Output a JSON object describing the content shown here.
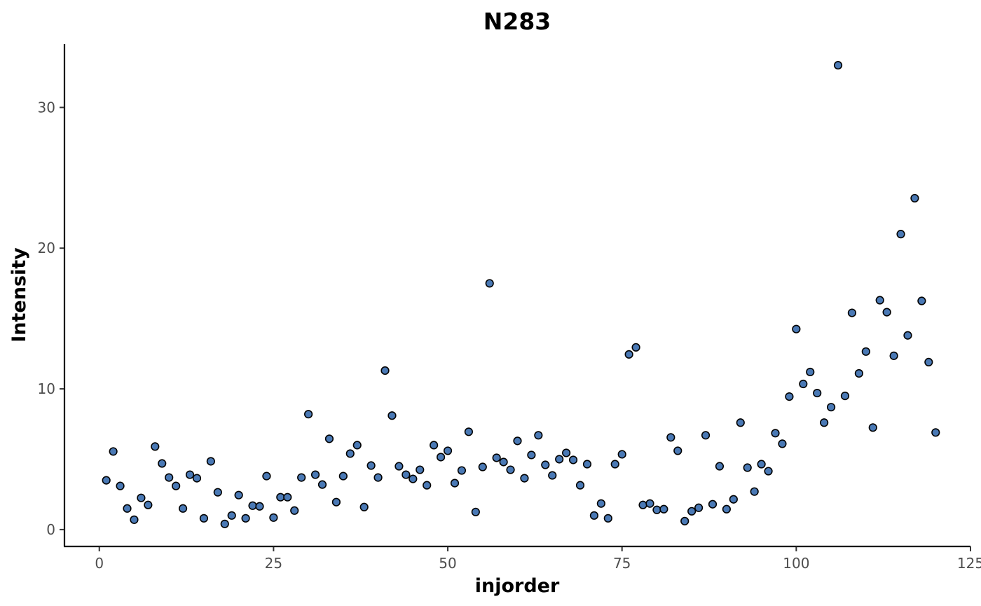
{
  "chart_data": {
    "type": "scatter",
    "title": "N283",
    "xlabel": "injorder",
    "ylabel": "Intensity",
    "xlim": [
      -5,
      125
    ],
    "ylim": [
      -1.2,
      34.5
    ],
    "x_ticks": [
      0,
      25,
      50,
      75,
      100,
      125
    ],
    "y_ticks": [
      0,
      10,
      20,
      30
    ],
    "x_tick_labels": [
      "0",
      "25",
      "50",
      "75",
      "100",
      "125"
    ],
    "y_tick_labels": [
      "0",
      "10",
      "20",
      "30"
    ],
    "grid": false,
    "legend": "none",
    "point_color": "#4a79b5",
    "point_edge_color": "#000000",
    "points": [
      [
        1,
        3.5
      ],
      [
        2,
        5.55
      ],
      [
        3,
        3.1
      ],
      [
        4,
        1.5
      ],
      [
        5,
        0.7
      ],
      [
        6,
        2.25
      ],
      [
        7,
        1.75
      ],
      [
        8,
        5.9
      ],
      [
        9,
        4.7
      ],
      [
        10,
        3.7
      ],
      [
        11,
        3.1
      ],
      [
        12,
        1.5
      ],
      [
        13,
        3.9
      ],
      [
        14,
        3.65
      ],
      [
        15,
        0.8
      ],
      [
        16,
        4.85
      ],
      [
        17,
        2.65
      ],
      [
        18,
        0.4
      ],
      [
        19,
        1.0
      ],
      [
        20,
        2.45
      ],
      [
        21,
        0.8
      ],
      [
        22,
        1.7
      ],
      [
        23,
        1.65
      ],
      [
        24,
        3.8
      ],
      [
        25,
        0.85
      ],
      [
        26,
        2.3
      ],
      [
        27,
        2.3
      ],
      [
        28,
        1.35
      ],
      [
        29,
        3.7
      ],
      [
        30,
        8.2
      ],
      [
        31,
        3.9
      ],
      [
        32,
        3.2
      ],
      [
        33,
        6.45
      ],
      [
        34,
        1.95
      ],
      [
        35,
        3.8
      ],
      [
        36,
        5.4
      ],
      [
        37,
        6.0
      ],
      [
        38,
        1.6
      ],
      [
        39,
        4.55
      ],
      [
        40,
        3.7
      ],
      [
        41,
        11.3
      ],
      [
        42,
        8.1
      ],
      [
        43,
        4.5
      ],
      [
        44,
        3.9
      ],
      [
        45,
        3.6
      ],
      [
        46,
        4.25
      ],
      [
        47,
        3.15
      ],
      [
        48,
        6.0
      ],
      [
        49,
        5.15
      ],
      [
        50,
        5.6
      ],
      [
        51,
        3.3
      ],
      [
        52,
        4.2
      ],
      [
        53,
        6.95
      ],
      [
        54,
        1.25
      ],
      [
        55,
        4.45
      ],
      [
        56,
        17.5
      ],
      [
        57,
        5.1
      ],
      [
        58,
        4.8
      ],
      [
        59,
        4.25
      ],
      [
        60,
        6.3
      ],
      [
        61,
        3.65
      ],
      [
        62,
        5.3
      ],
      [
        63,
        6.7
      ],
      [
        64,
        4.6
      ],
      [
        65,
        3.85
      ],
      [
        66,
        5.0
      ],
      [
        67,
        5.45
      ],
      [
        68,
        4.95
      ],
      [
        69,
        3.15
      ],
      [
        70,
        4.65
      ],
      [
        71,
        1.0
      ],
      [
        72,
        1.85
      ],
      [
        73,
        0.8
      ],
      [
        74,
        4.65
      ],
      [
        75,
        5.35
      ],
      [
        76,
        12.45
      ],
      [
        77,
        12.95
      ],
      [
        78,
        1.75
      ],
      [
        79,
        1.85
      ],
      [
        80,
        1.4
      ],
      [
        81,
        1.45
      ],
      [
        82,
        6.55
      ],
      [
        83,
        5.6
      ],
      [
        84,
        0.6
      ],
      [
        85,
        1.3
      ],
      [
        86,
        1.55
      ],
      [
        87,
        6.7
      ],
      [
        88,
        1.8
      ],
      [
        89,
        4.5
      ],
      [
        90,
        1.45
      ],
      [
        91,
        2.15
      ],
      [
        92,
        7.6
      ],
      [
        93,
        4.4
      ],
      [
        94,
        2.7
      ],
      [
        95,
        4.65
      ],
      [
        96,
        4.15
      ],
      [
        97,
        6.85
      ],
      [
        98,
        6.1
      ],
      [
        99,
        9.45
      ],
      [
        100,
        14.25
      ],
      [
        101,
        10.35
      ],
      [
        102,
        11.2
      ],
      [
        103,
        9.7
      ],
      [
        104,
        7.6
      ],
      [
        105,
        8.7
      ],
      [
        106,
        33.0
      ],
      [
        107,
        9.5
      ],
      [
        108,
        15.4
      ],
      [
        109,
        11.1
      ],
      [
        110,
        12.65
      ],
      [
        111,
        7.25
      ],
      [
        112,
        16.3
      ],
      [
        113,
        15.45
      ],
      [
        114,
        12.35
      ],
      [
        115,
        21.0
      ],
      [
        116,
        13.8
      ],
      [
        117,
        23.55
      ],
      [
        118,
        16.25
      ],
      [
        119,
        11.9
      ],
      [
        120,
        6.9
      ]
    ]
  }
}
